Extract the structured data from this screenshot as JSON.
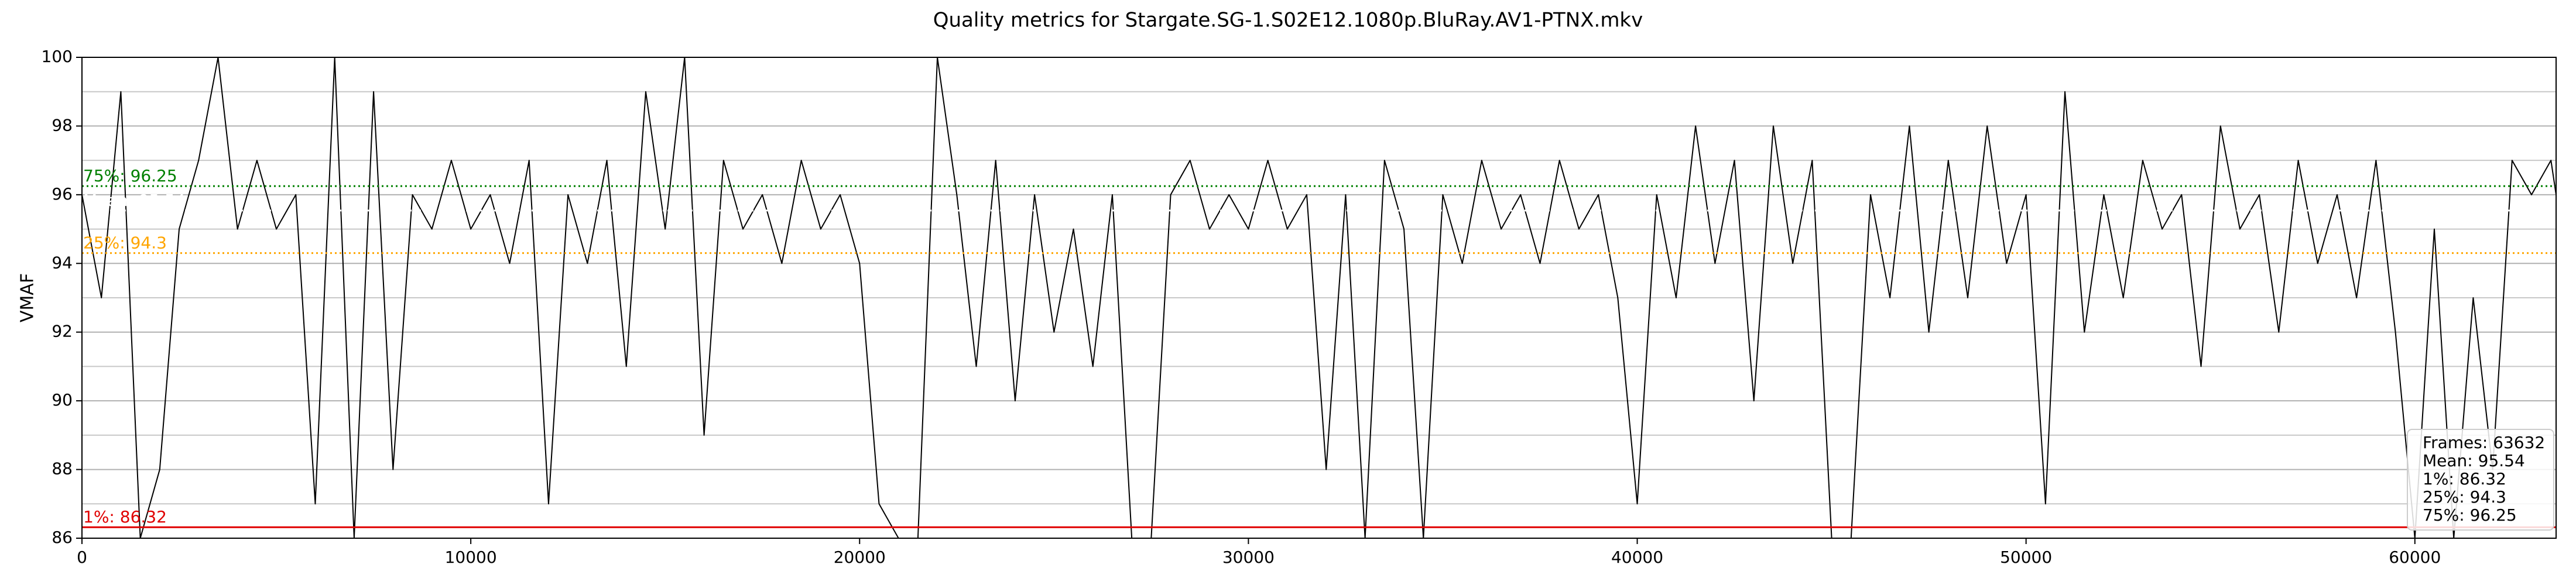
{
  "chart_data": {
    "type": "line",
    "title": "Quality metrics for Stargate.SG-1.S02E12.1080p.BluRay.AV1-PTNX.mkv",
    "y_label": "VMAF",
    "color": "#000000",
    "x": [
      0,
      500,
      1000,
      1500,
      2000,
      2500,
      3000,
      3500,
      4000,
      4500,
      5000,
      5500,
      6000,
      6500,
      7000,
      7500,
      8000,
      8500,
      9000,
      9500,
      10000,
      10500,
      11000,
      11500,
      12000,
      12500,
      13000,
      13500,
      14000,
      14500,
      15000,
      15500,
      16000,
      16500,
      17000,
      17500,
      18000,
      18500,
      19000,
      19500,
      20000,
      20500,
      21000,
      21500,
      22000,
      22500,
      23000,
      23500,
      24000,
      24500,
      25000,
      25500,
      26000,
      26500,
      27000,
      27500,
      28000,
      28500,
      29000,
      29500,
      30000,
      30500,
      31000,
      31500,
      32000,
      32500,
      33000,
      33500,
      34000,
      34500,
      35000,
      35500,
      36000,
      36500,
      37000,
      37500,
      38000,
      38500,
      39000,
      39500,
      40000,
      40500,
      41000,
      41500,
      42000,
      42500,
      43000,
      43500,
      44000,
      44500,
      45000,
      45500,
      46000,
      46500,
      47000,
      47500,
      48000,
      48500,
      49000,
      49500,
      50000,
      50500,
      51000,
      51500,
      52000,
      52500,
      53000,
      53500,
      54000,
      54500,
      55000,
      55500,
      56000,
      56500,
      57000,
      57500,
      58000,
      58500,
      59000,
      59500,
      60000,
      60500,
      61000,
      61500,
      62000,
      62500,
      63000,
      63500,
      63632
    ],
    "values": [
      96,
      93,
      99,
      86,
      88,
      95,
      97,
      100,
      95,
      97,
      95,
      96,
      87,
      100,
      86,
      99,
      88,
      96,
      95,
      97,
      95,
      96,
      94,
      97,
      87,
      96,
      94,
      97,
      91,
      99,
      95,
      100,
      89,
      97,
      95,
      96,
      94,
      97,
      95,
      96,
      94,
      87,
      86,
      86,
      100,
      96,
      91,
      97,
      90,
      96,
      92,
      95,
      91,
      96,
      86,
      86,
      96,
      97,
      95,
      96,
      95,
      97,
      95,
      96,
      88,
      96,
      86,
      97,
      95,
      86,
      96,
      94,
      97,
      95,
      96,
      94,
      97,
      95,
      96,
      93,
      87,
      96,
      93,
      98,
      94,
      97,
      90,
      98,
      94,
      97,
      86,
      86,
      96,
      93,
      98,
      92,
      97,
      93,
      98,
      94,
      96,
      87,
      99,
      92,
      96,
      93,
      97,
      95,
      96,
      91,
      98,
      95,
      96,
      92,
      97,
      94,
      96,
      93,
      97,
      92,
      86,
      95,
      86,
      93,
      88,
      97,
      96,
      97,
      96
    ],
    "xlim": [
      0,
      63632
    ],
    "ylim": [
      86,
      100
    ],
    "xticks": [
      0,
      10000,
      20000,
      30000,
      40000,
      50000,
      60000
    ],
    "yticks": [
      86,
      88,
      90,
      92,
      94,
      96,
      98,
      100
    ],
    "y_minor_ticks": [
      87,
      89,
      91,
      93,
      95,
      97,
      99
    ],
    "grid": true,
    "reference_lines": [
      {
        "label": "1%: 86.32",
        "value": 86.32,
        "color": "#e00000",
        "style": "solid"
      },
      {
        "label": "25%: 94.3",
        "value": 94.3,
        "color": "#ffa500",
        "style": "dotted"
      },
      {
        "label": "Mean: 95.54",
        "value": 95.54,
        "color": "#ffffff",
        "style": "dotted"
      },
      {
        "label": "75%: 96.25",
        "value": 96.25,
        "color": "#008000",
        "style": "dotted"
      }
    ],
    "stats_box": [
      "Frames: 63632",
      "Mean: 95.54",
      "1%: 86.32",
      "25%: 94.3",
      "75%: 96.25"
    ]
  }
}
